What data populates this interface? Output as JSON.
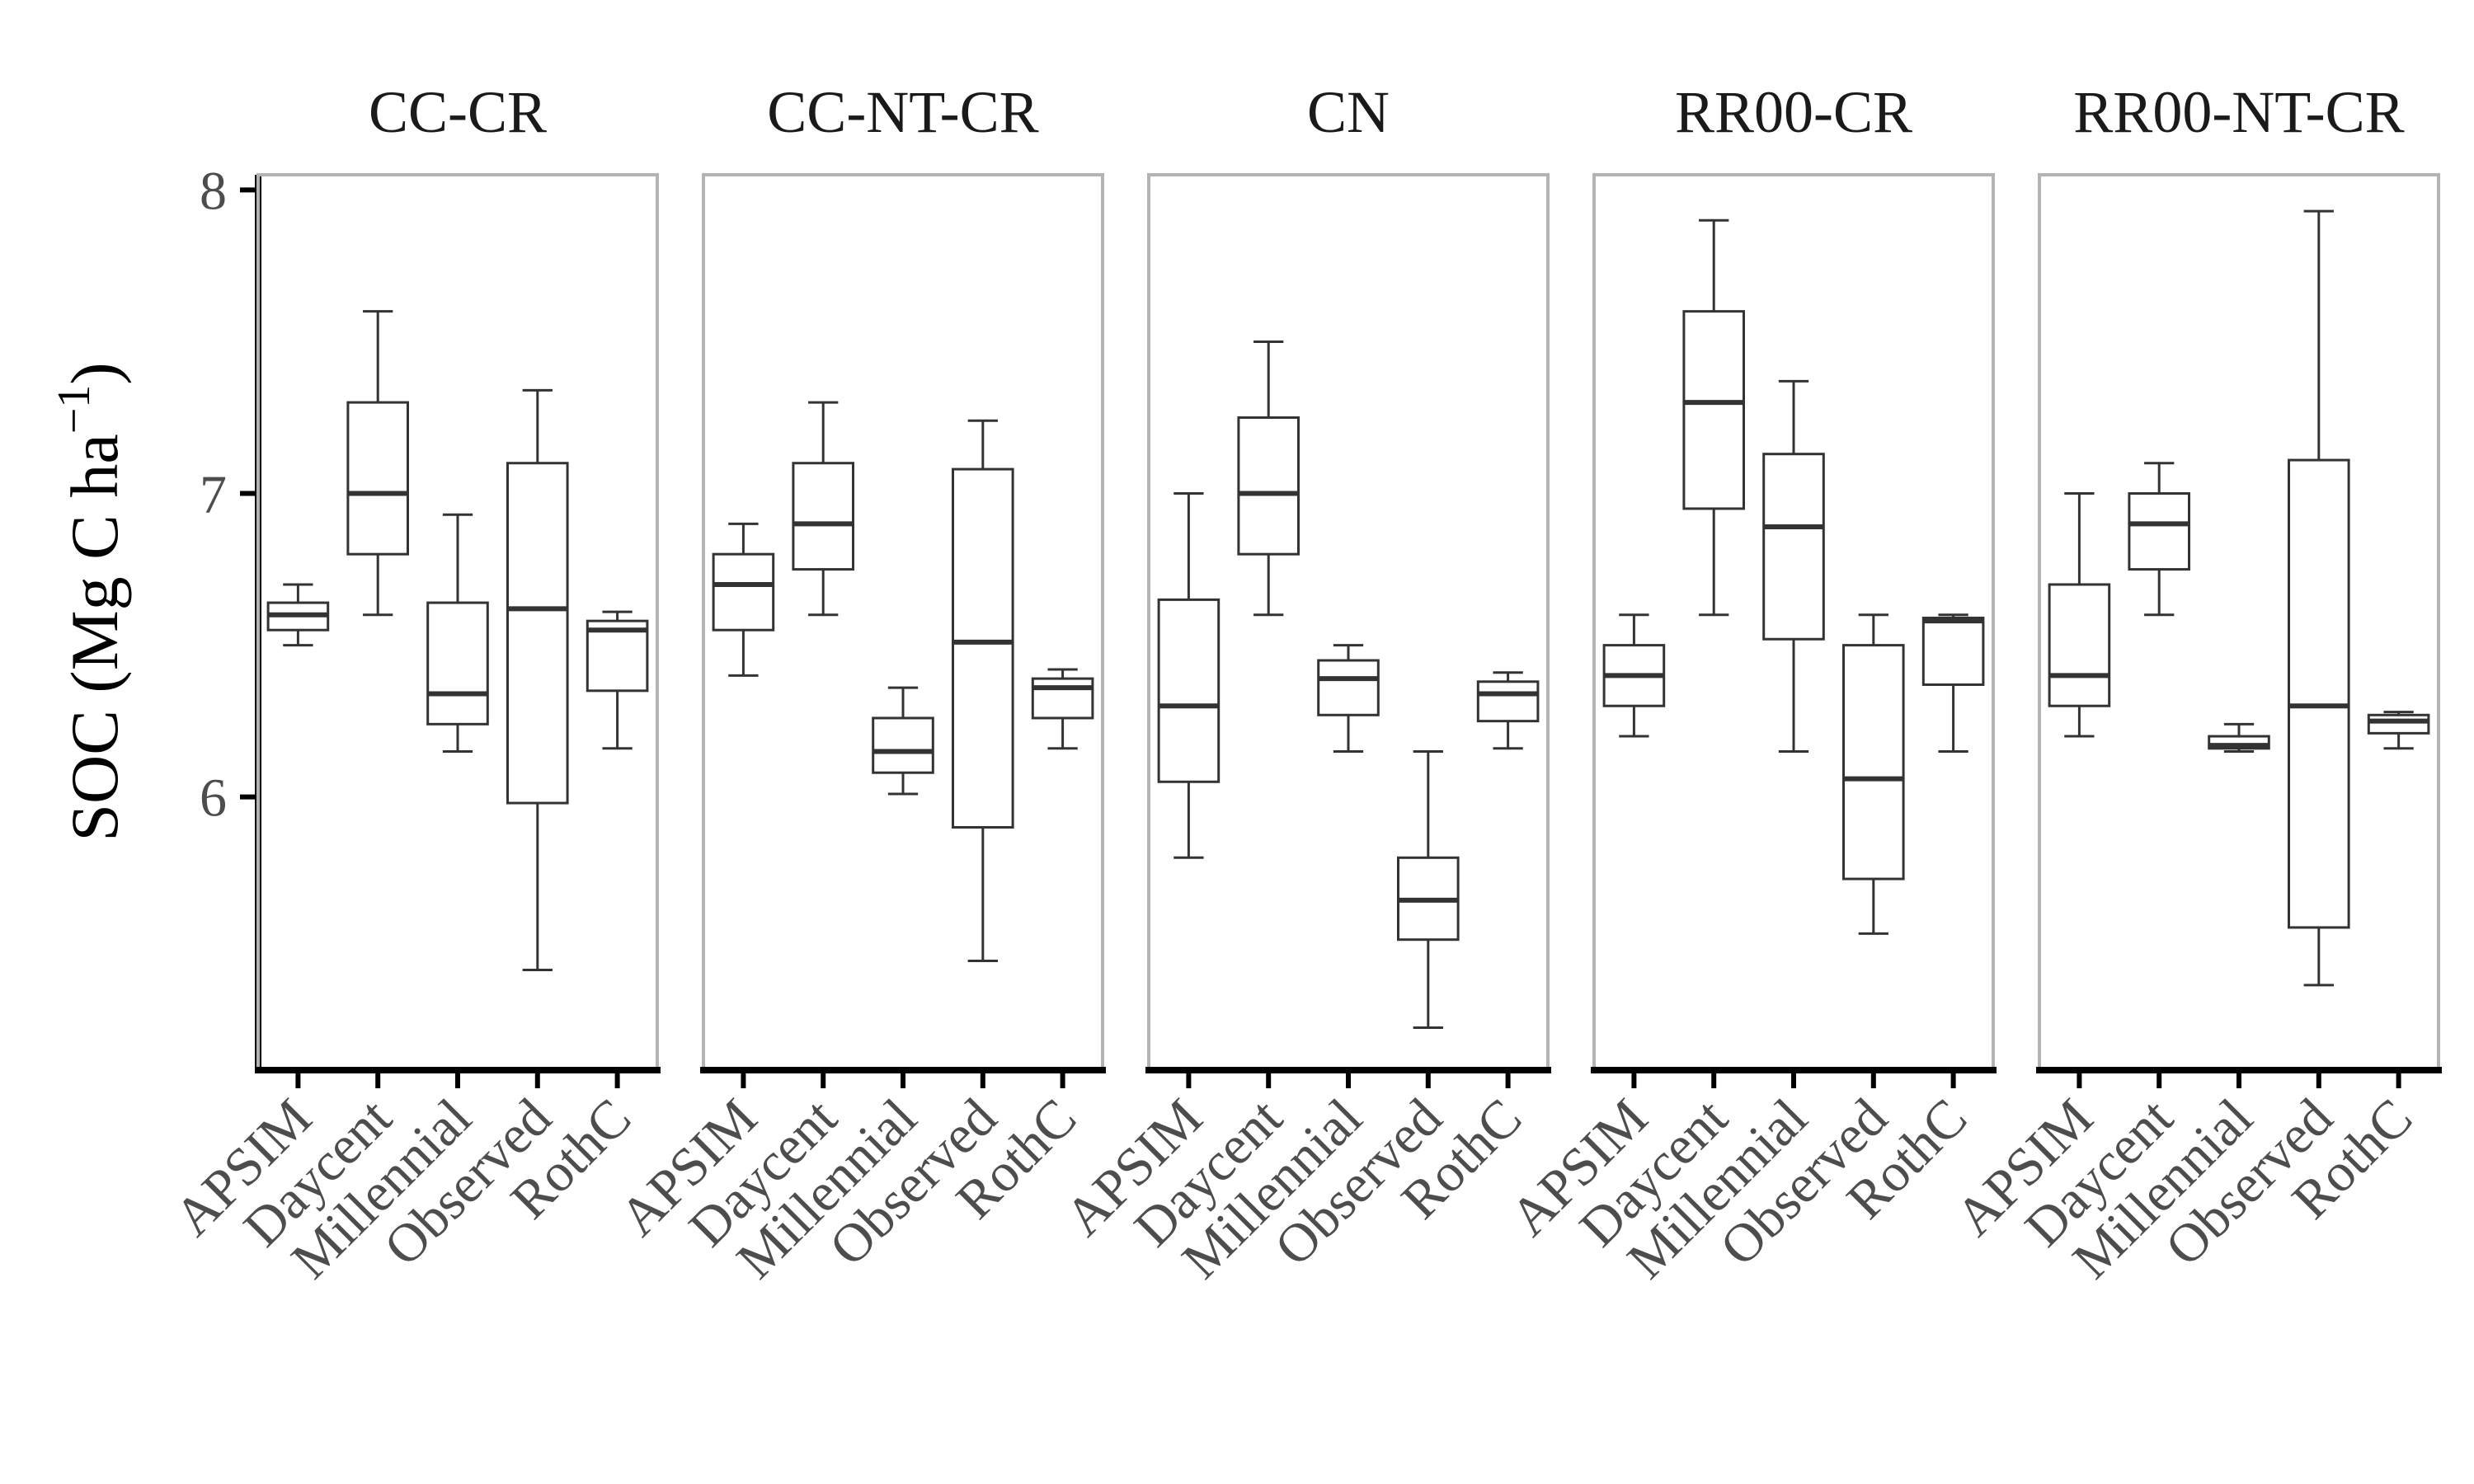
{
  "chart_data": {
    "type": "boxplot",
    "ylabel": "SOC (Mg C ha",
    "ylabel_sup": "−1",
    "ylabel_close": ")",
    "xlabel": "",
    "yticks": [
      6,
      7,
      8
    ],
    "ylim": [
      5.1,
      8.05
    ],
    "categories": [
      "APSIM",
      "Daycent",
      "Millennial",
      "Observed",
      "RothC"
    ],
    "facets": [
      {
        "title": "CC-CR",
        "boxes": [
          {
            "category": "APSIM",
            "min": 6.5,
            "q1": 6.55,
            "median": 6.6,
            "q3": 6.64,
            "max": 6.7
          },
          {
            "category": "Daycent",
            "min": 6.6,
            "q1": 6.8,
            "median": 7.0,
            "q3": 7.3,
            "max": 7.6
          },
          {
            "category": "Millennial",
            "min": 6.15,
            "q1": 6.24,
            "median": 6.34,
            "q3": 6.64,
            "max": 6.93
          },
          {
            "category": "Observed",
            "min": 5.43,
            "q1": 5.98,
            "median": 6.62,
            "q3": 7.1,
            "max": 7.34
          },
          {
            "category": "RothC",
            "min": 6.16,
            "q1": 6.35,
            "median": 6.55,
            "q3": 6.58,
            "max": 6.61
          }
        ]
      },
      {
        "title": "CC-NT-CR",
        "boxes": [
          {
            "category": "APSIM",
            "min": 6.4,
            "q1": 6.55,
            "median": 6.7,
            "q3": 6.8,
            "max": 6.9
          },
          {
            "category": "Daycent",
            "min": 6.6,
            "q1": 6.75,
            "median": 6.9,
            "q3": 7.1,
            "max": 7.3
          },
          {
            "category": "Millennial",
            "min": 6.01,
            "q1": 6.08,
            "median": 6.15,
            "q3": 6.26,
            "max": 6.36
          },
          {
            "category": "Observed",
            "min": 5.46,
            "q1": 5.9,
            "median": 6.51,
            "q3": 7.08,
            "max": 7.24
          },
          {
            "category": "RothC",
            "min": 6.16,
            "q1": 6.26,
            "median": 6.36,
            "q3": 6.39,
            "max": 6.42
          }
        ]
      },
      {
        "title": "CN",
        "boxes": [
          {
            "category": "APSIM",
            "min": 5.8,
            "q1": 6.05,
            "median": 6.3,
            "q3": 6.65,
            "max": 7.0
          },
          {
            "category": "Daycent",
            "min": 6.6,
            "q1": 6.8,
            "median": 7.0,
            "q3": 7.25,
            "max": 7.5
          },
          {
            "category": "Millennial",
            "min": 6.15,
            "q1": 6.27,
            "median": 6.39,
            "q3": 6.45,
            "max": 6.5
          },
          {
            "category": "Observed",
            "min": 5.24,
            "q1": 5.53,
            "median": 5.66,
            "q3": 5.8,
            "max": 6.15
          },
          {
            "category": "RothC",
            "min": 6.16,
            "q1": 6.25,
            "median": 6.34,
            "q3": 6.38,
            "max": 6.41
          }
        ]
      },
      {
        "title": "RR00-CR",
        "boxes": [
          {
            "category": "APSIM",
            "min": 6.2,
            "q1": 6.3,
            "median": 6.4,
            "q3": 6.5,
            "max": 6.6
          },
          {
            "category": "Daycent",
            "min": 6.6,
            "q1": 6.95,
            "median": 7.3,
            "q3": 7.6,
            "max": 7.9
          },
          {
            "category": "Millennial",
            "min": 6.15,
            "q1": 6.52,
            "median": 6.89,
            "q3": 7.13,
            "max": 7.37
          },
          {
            "category": "Observed",
            "min": 5.55,
            "q1": 5.73,
            "median": 6.06,
            "q3": 6.5,
            "max": 6.6
          },
          {
            "category": "RothC",
            "min": 6.15,
            "q1": 6.37,
            "median": 6.58,
            "q3": 6.59,
            "max": 6.6
          }
        ]
      },
      {
        "title": "RR00-NT-CR",
        "boxes": [
          {
            "category": "APSIM",
            "min": 6.2,
            "q1": 6.3,
            "median": 6.4,
            "q3": 6.7,
            "max": 7.0
          },
          {
            "category": "Daycent",
            "min": 6.6,
            "q1": 6.75,
            "median": 6.9,
            "q3": 7.0,
            "max": 7.1
          },
          {
            "category": "Millennial",
            "min": 6.15,
            "q1": 6.16,
            "median": 6.17,
            "q3": 6.2,
            "max": 6.24
          },
          {
            "category": "Observed",
            "min": 5.38,
            "q1": 5.57,
            "median": 6.3,
            "q3": 7.11,
            "max": 7.93
          },
          {
            "category": "RothC",
            "min": 6.16,
            "q1": 6.21,
            "median": 6.25,
            "q3": 6.27,
            "max": 6.28
          }
        ]
      }
    ],
    "colors": {
      "box_stroke": "#333333",
      "panel_border": "#b3b3b3",
      "axis": "#000000",
      "tick_label": "#4d4d4d",
      "facet_title": "#1a1a1a"
    }
  }
}
